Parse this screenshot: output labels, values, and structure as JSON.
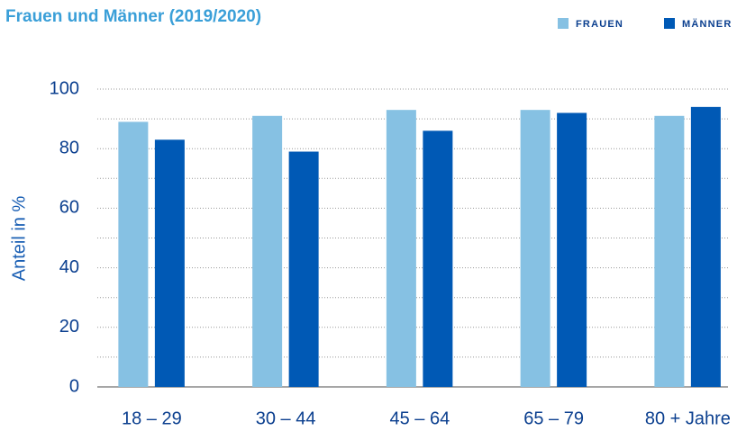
{
  "chart_data": {
    "type": "bar",
    "title": "Frauen und Männer (2019/2020)",
    "y_label": "Anteil in %",
    "categories": [
      "18 – 29",
      "30 – 44",
      "45 – 64",
      "65 – 79",
      "80 + Jahre"
    ],
    "series": [
      {
        "name": "FRAUEN",
        "color": "#86c1e3",
        "values": [
          89,
          91,
          93,
          93,
          91
        ]
      },
      {
        "name": "MÄNNER",
        "color": "#0059b5",
        "values": [
          83,
          79,
          86,
          92,
          94
        ]
      }
    ],
    "ylim": [
      0,
      100
    ],
    "yticks": [
      0,
      20,
      40,
      60,
      80,
      100
    ],
    "minor_yticks": [
      10,
      30,
      50,
      70,
      90
    ],
    "grid": true,
    "legend": "top-right"
  }
}
